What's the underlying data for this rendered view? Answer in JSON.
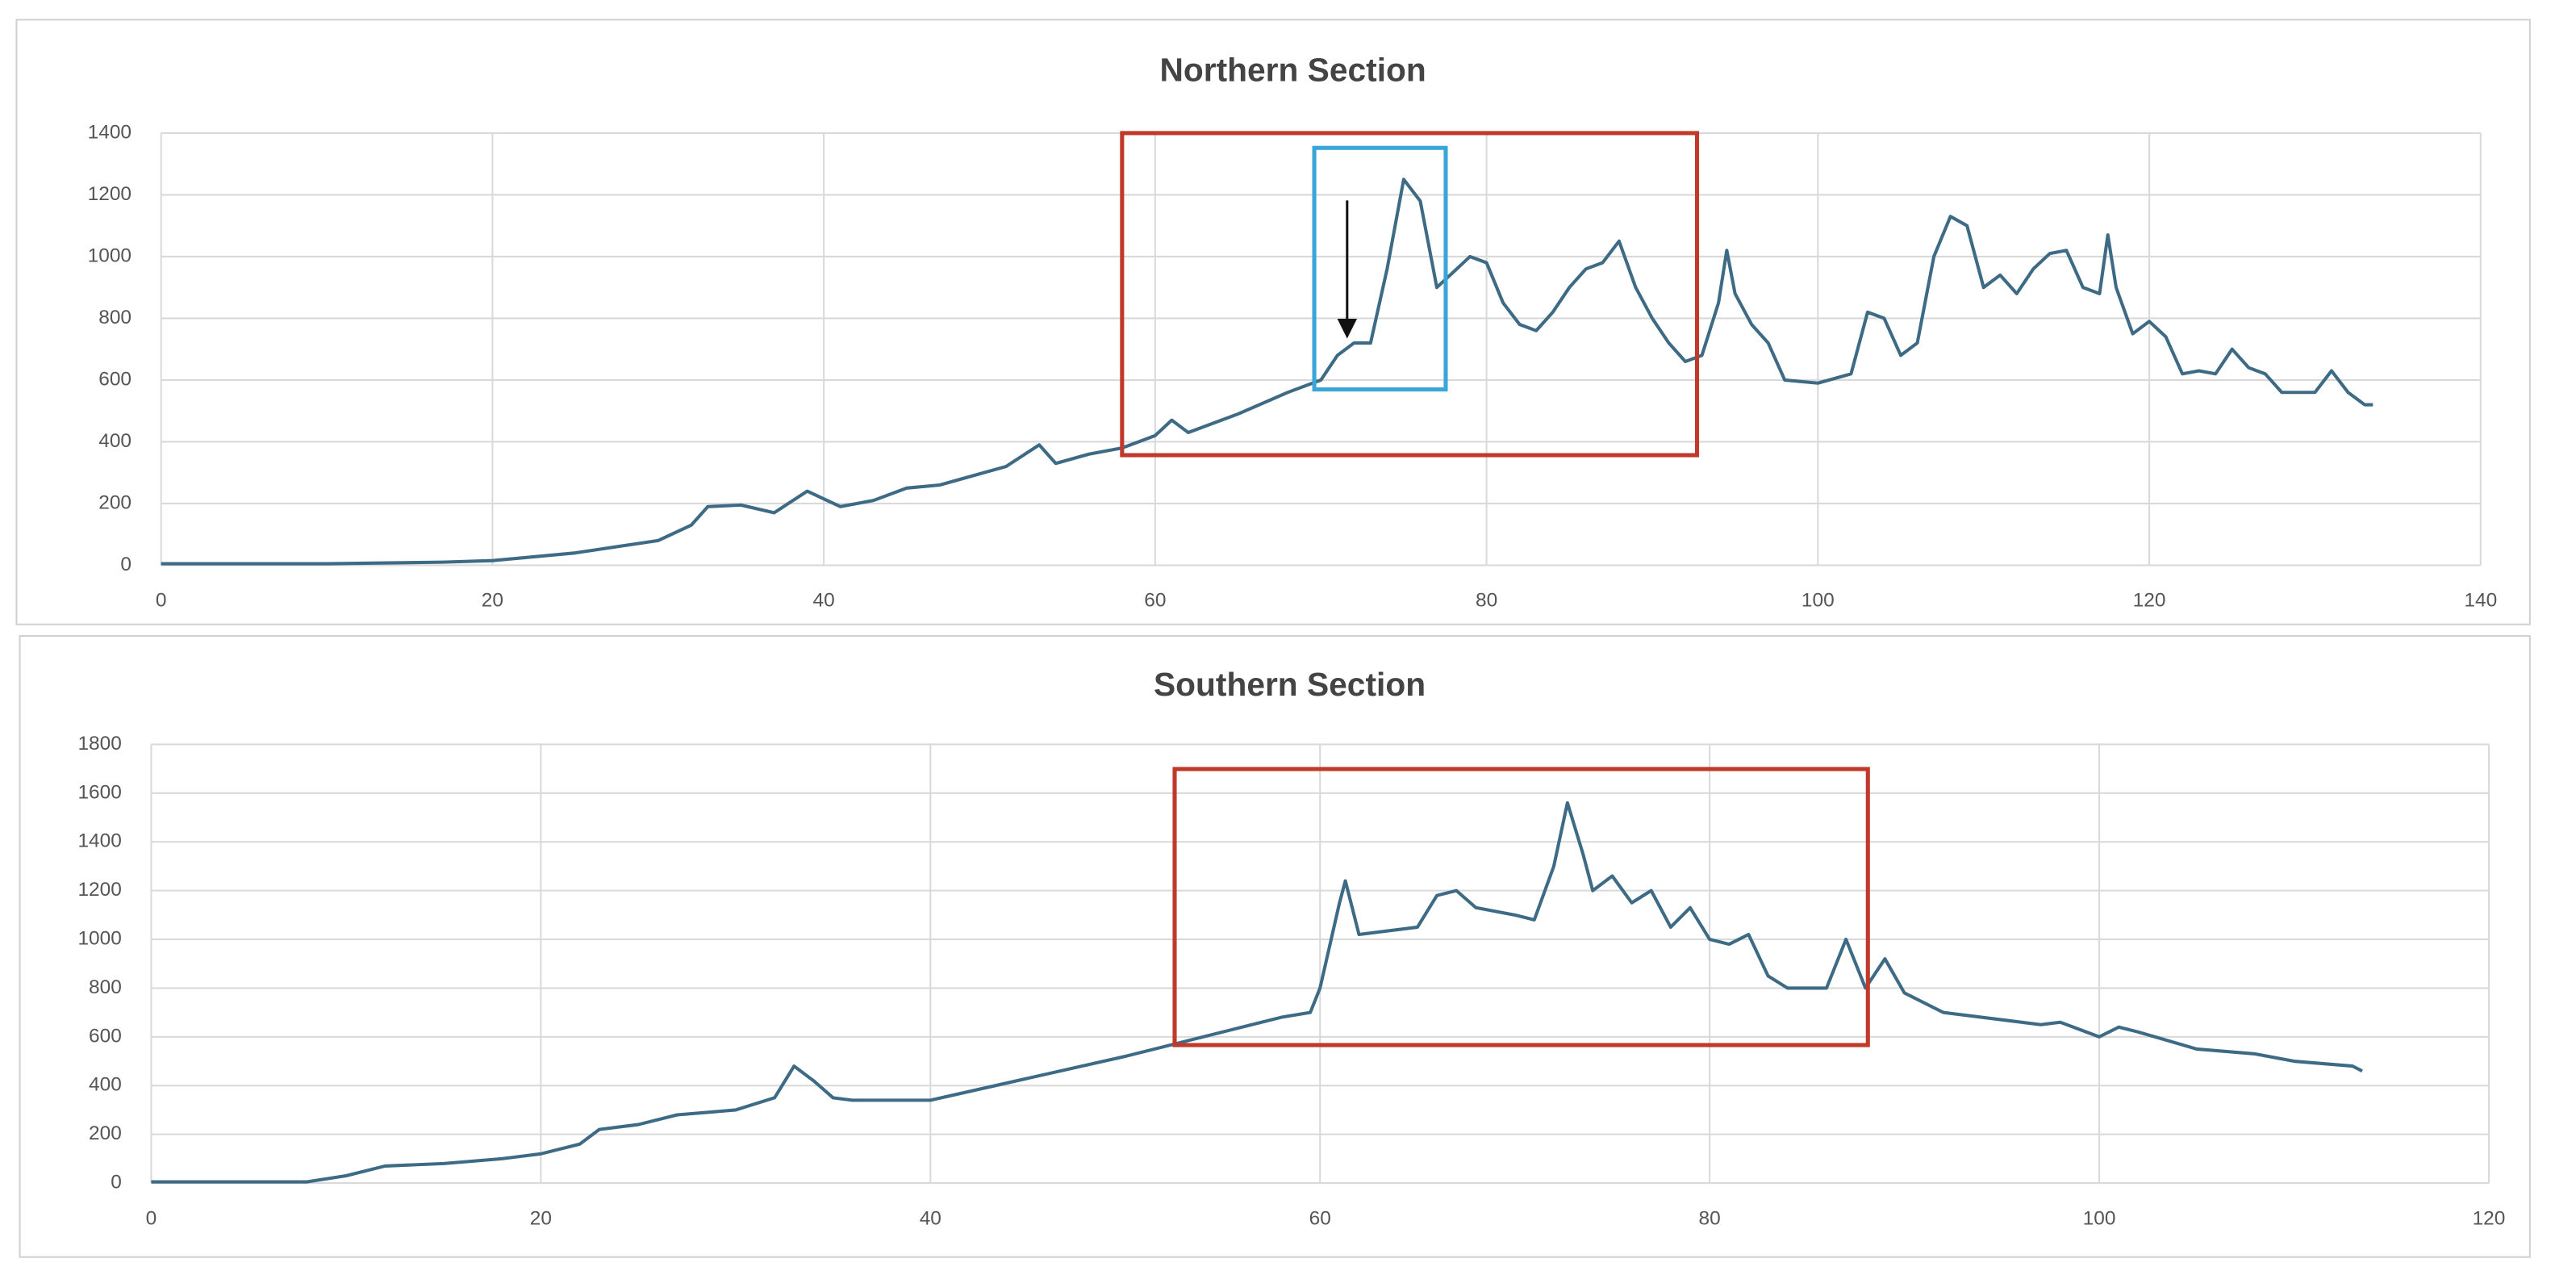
{
  "chart_data": [
    {
      "type": "line",
      "title": "Northern Section",
      "x": [
        0,
        10,
        17,
        20,
        25,
        30,
        32,
        33,
        35,
        37,
        39,
        41,
        43,
        45,
        47,
        49,
        51,
        53,
        54,
        56,
        58,
        60,
        61,
        62,
        65,
        68,
        70,
        71,
        72,
        73,
        74,
        75,
        76,
        77,
        78,
        79,
        80,
        81,
        82,
        83,
        84,
        85,
        86,
        87,
        88,
        89,
        90,
        91,
        92,
        93,
        94,
        94.5,
        95,
        96,
        97,
        98,
        100,
        102,
        103,
        104,
        105,
        106,
        107,
        108,
        109,
        110,
        111,
        112,
        113,
        114,
        115,
        116,
        117,
        117.5,
        118,
        119,
        120,
        121,
        122,
        123,
        124,
        125,
        126,
        127,
        128,
        130,
        131,
        132,
        133,
        133.5
      ],
      "series": [
        {
          "name": "Northern Section",
          "color": "#3d6a84",
          "values": [
            5,
            5,
            10,
            15,
            40,
            80,
            130,
            190,
            195,
            170,
            240,
            190,
            210,
            250,
            260,
            290,
            320,
            390,
            330,
            360,
            380,
            420,
            470,
            430,
            490,
            560,
            600,
            680,
            720,
            720,
            960,
            1250,
            1180,
            900,
            950,
            1000,
            980,
            850,
            780,
            760,
            820,
            900,
            960,
            980,
            1050,
            900,
            800,
            720,
            660,
            680,
            850,
            1020,
            880,
            780,
            720,
            600,
            590,
            620,
            820,
            800,
            680,
            720,
            1000,
            1130,
            1100,
            900,
            940,
            880,
            960,
            1010,
            1020,
            900,
            880,
            1070,
            900,
            750,
            790,
            740,
            620,
            630,
            620,
            700,
            640,
            620,
            560,
            560,
            630,
            560,
            520,
            520
          ]
        }
      ],
      "xlim": [
        0,
        140
      ],
      "xticks": [
        0,
        20,
        40,
        60,
        80,
        100,
        120,
        140
      ],
      "ylim": [
        0,
        1400
      ],
      "yticks": [
        0,
        200,
        400,
        600,
        800,
        1000,
        1200,
        1400
      ],
      "grid": true
    },
    {
      "type": "line",
      "title": "Southern Section",
      "x": [
        0,
        8,
        10,
        12,
        15,
        18,
        20,
        22,
        23,
        25,
        27,
        30,
        32,
        33,
        34,
        35,
        36,
        40,
        45,
        50,
        52,
        55,
        58,
        59.5,
        60,
        61,
        61.3,
        62,
        65,
        66,
        67,
        68,
        70,
        71,
        72,
        72.7,
        73.5,
        74,
        75,
        76,
        77,
        78,
        79,
        80,
        81,
        82,
        83,
        84,
        86,
        87,
        88,
        89,
        90,
        92,
        95,
        97,
        98,
        100,
        101,
        102,
        105,
        108,
        110,
        113,
        113.5
      ],
      "series": [
        {
          "name": "Southern Section",
          "color": "#3d6a84",
          "values": [
            5,
            5,
            30,
            70,
            80,
            100,
            120,
            160,
            220,
            240,
            280,
            300,
            350,
            480,
            420,
            350,
            340,
            340,
            430,
            520,
            560,
            620,
            680,
            700,
            800,
            1150,
            1240,
            1020,
            1050,
            1180,
            1200,
            1130,
            1100,
            1080,
            1300,
            1560,
            1350,
            1200,
            1260,
            1150,
            1200,
            1050,
            1130,
            1000,
            980,
            1020,
            850,
            800,
            800,
            1000,
            800,
            920,
            780,
            700,
            670,
            650,
            660,
            600,
            640,
            620,
            550,
            530,
            500,
            480,
            460
          ]
        }
      ],
      "xlim": [
        0,
        120
      ],
      "xticks": [
        0,
        20,
        40,
        60,
        80,
        100,
        120
      ],
      "ylim": [
        0,
        1800
      ],
      "yticks": [
        0,
        200,
        400,
        600,
        800,
        1000,
        1200,
        1400,
        1600,
        1800
      ],
      "grid": true
    }
  ]
}
